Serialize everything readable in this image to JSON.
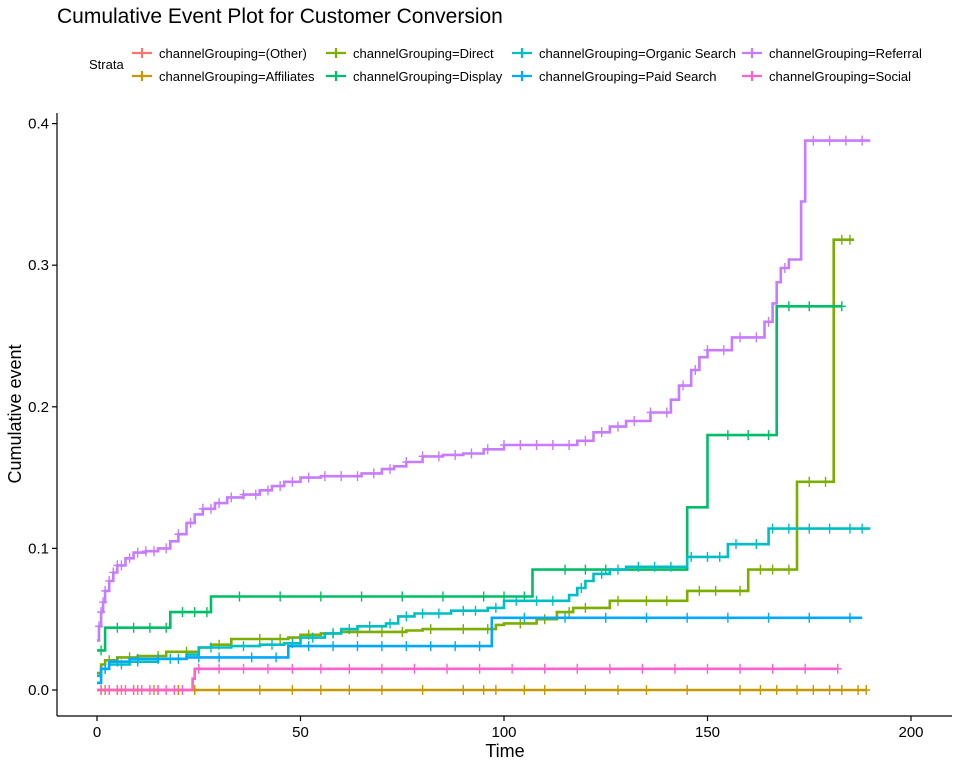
{
  "chart_data": {
    "type": "line",
    "title": "Cumulative Event Plot for Customer Conversion",
    "xlabel": "Time",
    "ylabel": "Cumulative event",
    "xlim": [
      -10,
      203
    ],
    "ylim": [
      -0.02,
      0.405
    ],
    "x_ticks": [
      "0",
      "50",
      "100",
      "150",
      "200"
    ],
    "y_ticks": [
      "0.0",
      "0.1",
      "0.2",
      "0.3",
      "0.4"
    ],
    "grid": false,
    "legend": {
      "title": "Strata",
      "position": "top"
    },
    "series": [
      {
        "name": "channelGrouping=(Other)",
        "color": "#F8766D",
        "points": [
          [
            0,
            0
          ],
          [
            25,
            0
          ]
        ],
        "censor": [
          1,
          3,
          6,
          10,
          15,
          20,
          24
        ]
      },
      {
        "name": "channelGrouping=Affiliates",
        "color": "#C49A00",
        "points": [
          [
            0,
            0
          ],
          [
            189,
            0
          ]
        ],
        "censor": [
          2,
          5,
          9,
          14,
          20,
          24,
          30,
          40,
          48,
          55,
          62,
          70,
          80,
          90,
          95,
          98,
          105,
          110,
          120,
          128,
          135,
          145,
          158,
          163,
          167,
          172,
          176,
          180,
          183,
          187,
          189
        ]
      },
      {
        "name": "channelGrouping=Direct",
        "color": "#7CAE00",
        "points": [
          [
            0,
            0.012
          ],
          [
            1,
            0.018
          ],
          [
            2,
            0.021
          ],
          [
            5,
            0.023
          ],
          [
            10,
            0.024
          ],
          [
            17,
            0.027
          ],
          [
            25,
            0.03
          ],
          [
            28,
            0.032
          ],
          [
            33,
            0.036
          ],
          [
            47,
            0.037
          ],
          [
            50,
            0.039
          ],
          [
            55,
            0.04
          ],
          [
            60,
            0.041
          ],
          [
            69,
            0.041
          ],
          [
            76,
            0.042
          ],
          [
            80,
            0.043
          ],
          [
            98,
            0.046
          ],
          [
            100,
            0.047
          ],
          [
            108,
            0.05
          ],
          [
            113,
            0.055
          ],
          [
            117,
            0.058
          ],
          [
            126,
            0.063
          ],
          [
            145,
            0.07
          ],
          [
            160,
            0.085
          ],
          [
            172,
            0.147
          ],
          [
            181,
            0.318
          ],
          [
            186,
            0.318
          ]
        ],
        "censor": [
          3,
          8,
          15,
          22,
          30,
          40,
          45,
          52,
          58,
          64,
          70,
          75,
          82,
          90,
          96,
          104,
          110,
          116,
          120,
          128,
          135,
          140,
          148,
          152,
          158,
          163,
          166,
          170,
          175,
          179,
          183,
          185
        ]
      },
      {
        "name": "channelGrouping=Display",
        "color": "#00BE67",
        "points": [
          [
            0,
            0.028
          ],
          [
            2,
            0.044
          ],
          [
            18,
            0.055
          ],
          [
            28,
            0.066
          ],
          [
            107,
            0.085
          ],
          [
            145,
            0.129
          ],
          [
            150,
            0.18
          ],
          [
            167,
            0.271
          ],
          [
            183,
            0.271
          ]
        ],
        "censor": [
          1,
          5,
          9,
          13,
          17,
          21,
          24,
          27,
          35,
          45,
          55,
          65,
          75,
          85,
          95,
          100,
          105,
          115,
          120,
          125,
          155,
          160,
          165,
          170,
          175,
          183
        ]
      },
      {
        "name": "channelGrouping=Organic Search",
        "color": "#00BFC4",
        "points": [
          [
            0,
            0.01
          ],
          [
            1,
            0.015
          ],
          [
            3,
            0.018
          ],
          [
            8,
            0.02
          ],
          [
            15,
            0.022
          ],
          [
            22,
            0.025
          ],
          [
            25,
            0.03
          ],
          [
            33,
            0.031
          ],
          [
            40,
            0.032
          ],
          [
            46,
            0.033
          ],
          [
            50,
            0.037
          ],
          [
            56,
            0.04
          ],
          [
            60,
            0.043
          ],
          [
            64,
            0.045
          ],
          [
            71,
            0.047
          ],
          [
            74,
            0.052
          ],
          [
            78,
            0.054
          ],
          [
            87,
            0.056
          ],
          [
            96,
            0.058
          ],
          [
            100,
            0.063
          ],
          [
            116,
            0.067
          ],
          [
            118,
            0.072
          ],
          [
            120,
            0.077
          ],
          [
            122,
            0.082
          ],
          [
            126,
            0.085
          ],
          [
            130,
            0.087
          ],
          [
            145,
            0.094
          ],
          [
            155,
            0.103
          ],
          [
            165,
            0.114
          ],
          [
            190,
            0.114
          ]
        ],
        "censor": [
          2,
          6,
          10,
          18,
          28,
          36,
          43,
          48,
          53,
          58,
          62,
          67,
          72,
          76,
          80,
          84,
          90,
          93,
          98,
          103,
          108,
          112,
          119,
          124,
          128,
          133,
          137,
          141,
          146,
          150,
          153,
          157,
          162,
          166,
          170,
          175,
          180,
          185,
          188
        ]
      },
      {
        "name": "channelGrouping=Paid Search",
        "color": "#00A9FF",
        "points": [
          [
            0,
            0.005
          ],
          [
            1,
            0.015
          ],
          [
            3,
            0.02
          ],
          [
            8,
            0.022
          ],
          [
            22,
            0.023
          ],
          [
            47,
            0.031
          ],
          [
            97,
            0.051
          ],
          [
            188,
            0.051
          ]
        ],
        "censor": [
          2,
          5,
          10,
          15,
          20,
          25,
          30,
          38,
          44,
          52,
          58,
          64,
          70,
          76,
          82,
          88,
          94,
          105,
          115,
          125,
          135,
          145,
          155,
          165,
          175,
          185
        ]
      },
      {
        "name": "channelGrouping=Referral",
        "color": "#C77CFF",
        "points": [
          [
            0,
            0.035
          ],
          [
            0.5,
            0.045
          ],
          [
            1,
            0.055
          ],
          [
            1.5,
            0.062
          ],
          [
            2,
            0.07
          ],
          [
            3,
            0.077
          ],
          [
            4,
            0.083
          ],
          [
            5,
            0.088
          ],
          [
            7,
            0.093
          ],
          [
            9,
            0.097
          ],
          [
            12,
            0.098
          ],
          [
            15,
            0.1
          ],
          [
            18,
            0.105
          ],
          [
            20,
            0.11
          ],
          [
            22,
            0.118
          ],
          [
            24,
            0.124
          ],
          [
            26,
            0.128
          ],
          [
            29,
            0.132
          ],
          [
            32,
            0.136
          ],
          [
            36,
            0.138
          ],
          [
            40,
            0.141
          ],
          [
            43,
            0.144
          ],
          [
            46,
            0.147
          ],
          [
            50,
            0.15
          ],
          [
            55,
            0.151
          ],
          [
            60,
            0.151
          ],
          [
            65,
            0.153
          ],
          [
            70,
            0.156
          ],
          [
            73,
            0.158
          ],
          [
            76,
            0.161
          ],
          [
            80,
            0.165
          ],
          [
            85,
            0.166
          ],
          [
            90,
            0.167
          ],
          [
            95,
            0.17
          ],
          [
            100,
            0.173
          ],
          [
            110,
            0.173
          ],
          [
            118,
            0.176
          ],
          [
            122,
            0.182
          ],
          [
            126,
            0.186
          ],
          [
            130,
            0.19
          ],
          [
            136,
            0.196
          ],
          [
            141,
            0.205
          ],
          [
            143,
            0.215
          ],
          [
            146,
            0.226
          ],
          [
            148,
            0.235
          ],
          [
            150,
            0.24
          ],
          [
            156,
            0.249
          ],
          [
            164,
            0.26
          ],
          [
            166,
            0.273
          ],
          [
            167,
            0.288
          ],
          [
            168,
            0.298
          ],
          [
            170,
            0.304
          ],
          [
            173,
            0.345
          ],
          [
            174,
            0.388
          ],
          [
            190,
            0.388
          ]
        ],
        "censor": [
          0.5,
          1,
          1.5,
          2,
          3,
          4,
          5,
          6,
          8,
          10,
          12,
          14,
          17,
          20,
          23,
          26,
          28,
          30,
          33,
          36,
          39,
          42,
          45,
          48,
          52,
          56,
          60,
          64,
          68,
          72,
          76,
          80,
          84,
          88,
          92,
          96,
          100,
          104,
          108,
          112,
          116,
          120,
          124,
          128,
          132,
          136,
          140,
          144,
          147,
          150,
          154,
          158,
          162,
          165,
          169,
          176,
          180,
          184,
          188
        ]
      },
      {
        "name": "channelGrouping=Social",
        "color": "#FF61CC",
        "points": [
          [
            0,
            0
          ],
          [
            23,
            0
          ],
          [
            23.5,
            0.008
          ],
          [
            24,
            0.015
          ],
          [
            182,
            0.015
          ]
        ],
        "censor": [
          1,
          3,
          5,
          7,
          9,
          11,
          13,
          15,
          17,
          19,
          21,
          25,
          30,
          36,
          42,
          48,
          55,
          62,
          70,
          78,
          86,
          94,
          102,
          110,
          118,
          126,
          134,
          142,
          150,
          158,
          166,
          174,
          182
        ]
      }
    ]
  }
}
